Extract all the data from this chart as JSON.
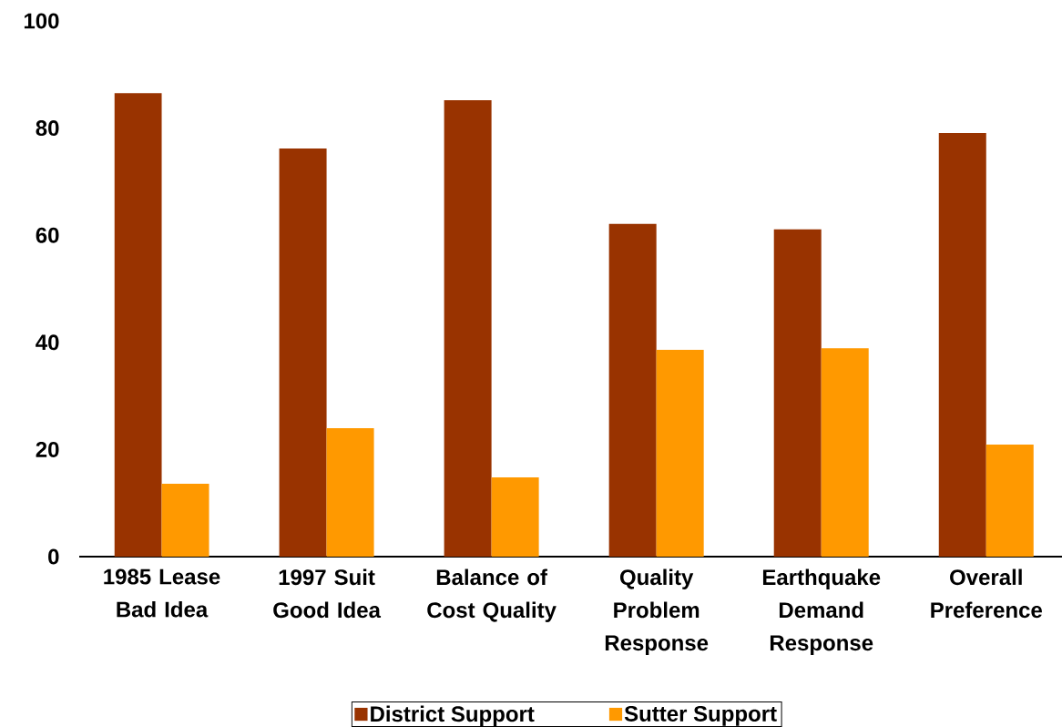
{
  "chart_data": {
    "type": "bar",
    "categories": [
      "1985 Lease Bad Idea",
      "1997 Suit Good Idea",
      "Balance of Cost Quality",
      "Quality Problem Response",
      "Earthquake Demand Response",
      "Overall Preference"
    ],
    "series": [
      {
        "name": "District Support",
        "color": "#993300",
        "values": [
          86.5,
          76.2,
          85.2,
          62.1,
          61.1,
          79.1
        ]
      },
      {
        "name": "Sutter Support",
        "color": "#ff9900",
        "values": [
          13.6,
          24.0,
          14.8,
          38.6,
          38.9,
          20.9
        ]
      }
    ],
    "ylim": [
      0,
      100
    ],
    "yticks": [
      0,
      20,
      40,
      60,
      80,
      100
    ],
    "legend": "bottom",
    "grid": false
  }
}
